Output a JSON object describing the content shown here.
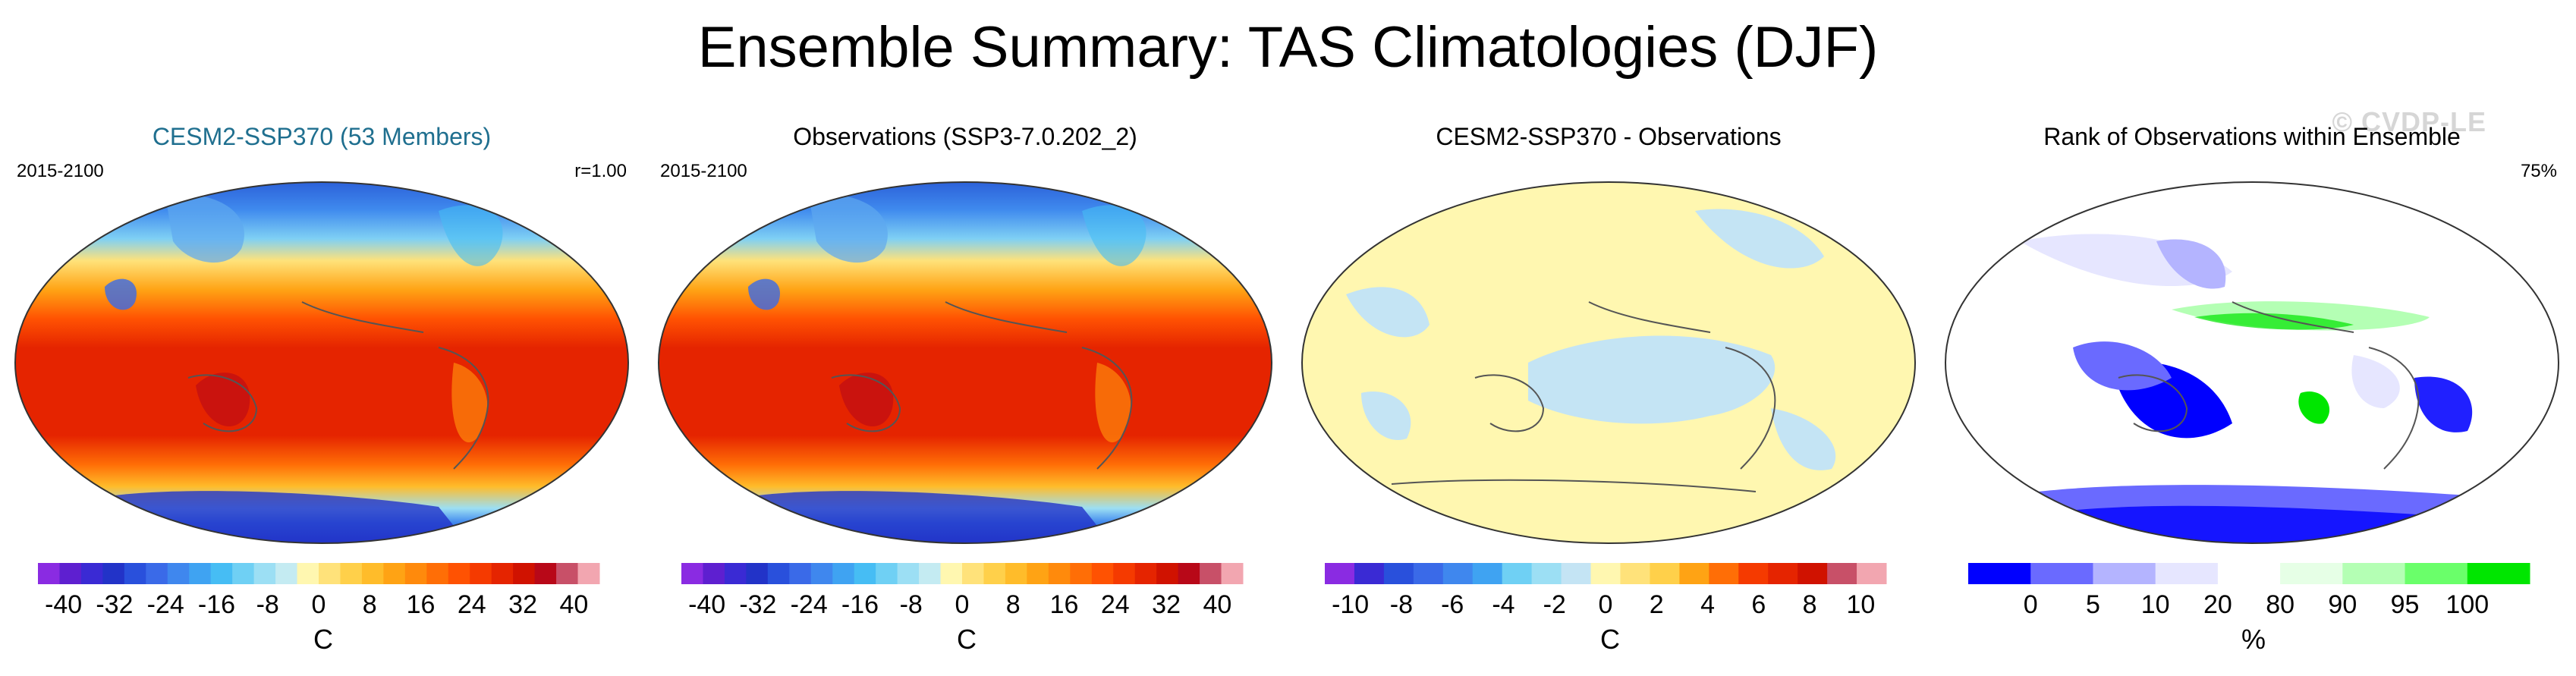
{
  "title": "Ensemble Summary: TAS Climatologies (DJF)",
  "watermark": "© CVDP-LE",
  "chart_data": [
    {
      "type": "heatmap",
      "title": "CESM2-SSP370 (53 Members)",
      "title_color": "#1f6f8f",
      "left_label": "2015-2100",
      "right_label": "r=1.00",
      "colorbar": {
        "ticks": [
          "-40",
          "-32",
          "-24",
          "-16",
          "-8",
          "0",
          "8",
          "16",
          "24",
          "32",
          "40"
        ],
        "unit": "C",
        "range": [
          -44,
          44
        ],
        "colors": [
          "#8a2be2",
          "#5e1fd0",
          "#3a2ad4",
          "#2233c8",
          "#2950dc",
          "#3a6ae8",
          "#3f87ee",
          "#3fa3f2",
          "#46bdf4",
          "#6fd0f4",
          "#9cdff4",
          "#c4ebf2",
          "#fff7b0",
          "#ffe27a",
          "#ffd04a",
          "#ffbc2a",
          "#ffa314",
          "#ff8a0c",
          "#ff6e06",
          "#ff5202",
          "#f53a00",
          "#e52400",
          "#d01200",
          "#b80818",
          "#c85068",
          "#f2a6b0"
        ]
      }
    },
    {
      "type": "heatmap",
      "title": "Observations (SSP3-7.0.202_2)",
      "title_color": "#000000",
      "left_label": "2015-2100",
      "right_label": "",
      "colorbar": {
        "ticks": [
          "-40",
          "-32",
          "-24",
          "-16",
          "-8",
          "0",
          "8",
          "16",
          "24",
          "32",
          "40"
        ],
        "unit": "C",
        "range": [
          -44,
          44
        ],
        "colors": [
          "#8a2be2",
          "#5e1fd0",
          "#3a2ad4",
          "#2233c8",
          "#2950dc",
          "#3a6ae8",
          "#3f87ee",
          "#3fa3f2",
          "#46bdf4",
          "#6fd0f4",
          "#9cdff4",
          "#c4ebf2",
          "#fff7b0",
          "#ffe27a",
          "#ffd04a",
          "#ffbc2a",
          "#ffa314",
          "#ff8a0c",
          "#ff6e06",
          "#ff5202",
          "#f53a00",
          "#e52400",
          "#d01200",
          "#b80818",
          "#c85068",
          "#f2a6b0"
        ]
      }
    },
    {
      "type": "heatmap",
      "title": "CESM2-SSP370 - Observations",
      "title_color": "#000000",
      "left_label": "",
      "right_label": "",
      "colorbar": {
        "ticks": [
          "-10",
          "-8",
          "-6",
          "-4",
          "-2",
          "0",
          "2",
          "4",
          "6",
          "8",
          "10"
        ],
        "unit": "C",
        "range": [
          -11,
          11
        ],
        "colors": [
          "#8a2be2",
          "#3a2ad4",
          "#2950dc",
          "#3a6ae8",
          "#3f87ee",
          "#3fa3f2",
          "#6fd0f4",
          "#9cdff4",
          "#c4e4f4",
          "#fff7b0",
          "#ffe27a",
          "#ffd04a",
          "#ffa314",
          "#ff6e06",
          "#f53a00",
          "#e52400",
          "#d01200",
          "#c85068",
          "#f2a6b0"
        ]
      }
    },
    {
      "type": "heatmap",
      "title": "Rank of Observations within Ensemble",
      "title_color": "#000000",
      "left_label": "",
      "right_label": "75%",
      "colorbar": {
        "ticks": [
          "0",
          "5",
          "10",
          "20",
          "80",
          "90",
          "95",
          "100"
        ],
        "unit": "%",
        "colors": [
          "#0000ff",
          "#6a6aff",
          "#b4b4ff",
          "#e6e6ff",
          "#ffffff",
          "#e6ffe6",
          "#b4ffb4",
          "#6aff6a",
          "#00e600"
        ]
      }
    }
  ]
}
